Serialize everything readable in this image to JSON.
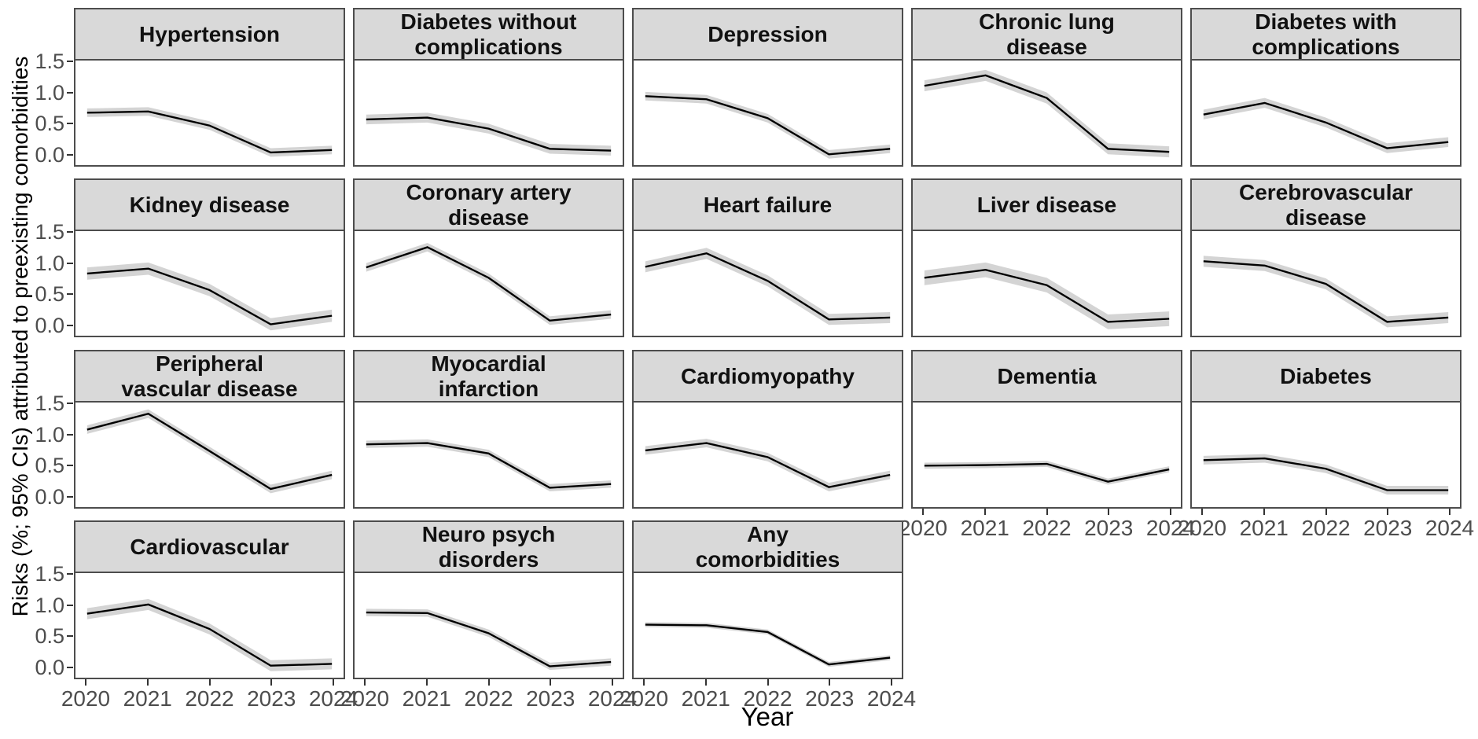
{
  "chart_data": {
    "type": "line",
    "title": "",
    "xlabel": "Year",
    "ylabel": "Risks (%; 95% CIs) attributed to preexisting comorbidities",
    "x": [
      2020,
      2021,
      2022,
      2023,
      2024
    ],
    "x_tick_labels": [
      "2020",
      "2021",
      "2022",
      "2023",
      "2024"
    ],
    "y_ticks": [
      1.5,
      1.0,
      0.5,
      0.0
    ],
    "y_tick_labels": [
      "1.5",
      "1.0",
      "0.5",
      "0.0"
    ],
    "ylim": [
      -0.2,
      1.5
    ],
    "grid": "off",
    "legend": "none",
    "facet_columns": 5,
    "facets": [
      {
        "title": "Hypertension",
        "values": [
          0.66,
          0.68,
          0.45,
          0.01,
          0.05
        ],
        "ci": 0.07
      },
      {
        "title": "Diabetes without\ncomplications",
        "values": [
          0.55,
          0.58,
          0.4,
          0.07,
          0.04
        ],
        "ci": 0.08
      },
      {
        "title": "Depression",
        "values": [
          0.93,
          0.88,
          0.57,
          -0.02,
          0.07
        ],
        "ci": 0.07
      },
      {
        "title": "Chronic lung\ndisease",
        "values": [
          1.1,
          1.27,
          0.9,
          0.07,
          0.02
        ],
        "ci": 0.09
      },
      {
        "title": "Diabetes with\ncomplications",
        "values": [
          0.63,
          0.82,
          0.5,
          0.08,
          0.18
        ],
        "ci": 0.08
      },
      {
        "title": "Kidney disease",
        "values": [
          0.82,
          0.9,
          0.55,
          -0.01,
          0.13
        ],
        "ci": 0.1
      },
      {
        "title": "Coronary artery\ndisease",
        "values": [
          0.92,
          1.25,
          0.75,
          0.05,
          0.15
        ],
        "ci": 0.07
      },
      {
        "title": "Heart failure",
        "values": [
          0.93,
          1.15,
          0.7,
          0.07,
          0.1
        ],
        "ci": 0.09
      },
      {
        "title": "Liver disease",
        "values": [
          0.75,
          0.88,
          0.63,
          0.03,
          0.08
        ],
        "ci": 0.12
      },
      {
        "title": "Cerebrovascular\ndisease",
        "values": [
          1.02,
          0.95,
          0.65,
          0.03,
          0.1
        ],
        "ci": 0.09
      },
      {
        "title": "Peripheral\nvascular disease",
        "values": [
          1.07,
          1.33,
          0.72,
          0.1,
          0.33
        ],
        "ci": 0.07
      },
      {
        "title": "Myocardial\ninfarction",
        "values": [
          0.83,
          0.85,
          0.68,
          0.12,
          0.18
        ],
        "ci": 0.06
      },
      {
        "title": "Cardiomyopathy",
        "values": [
          0.73,
          0.85,
          0.62,
          0.13,
          0.33
        ],
        "ci": 0.07
      },
      {
        "title": "Dementia",
        "values": [
          0.48,
          0.49,
          0.51,
          0.22,
          0.42
        ],
        "ci": 0.05
      },
      {
        "title": "Diabetes",
        "values": [
          0.57,
          0.6,
          0.43,
          0.08,
          0.08
        ],
        "ci": 0.07
      },
      {
        "title": "Cardiovascular",
        "values": [
          0.85,
          1.0,
          0.6,
          0.0,
          0.03
        ],
        "ci": 0.09
      },
      {
        "title": "Neuro psych\ndisorders",
        "values": [
          0.87,
          0.86,
          0.53,
          -0.01,
          0.06
        ],
        "ci": 0.06
      },
      {
        "title": "Any\ncomorbidities",
        "values": [
          0.67,
          0.66,
          0.55,
          0.02,
          0.13
        ],
        "ci": 0.04
      }
    ]
  },
  "colors": {
    "strip_background": "#d9d9d9",
    "panel_border": "#4d4d4d",
    "line": "#000000",
    "ci_ribbon": "#d4d4d4",
    "tick_label": "#4d4d4d",
    "axis_title": "#000000",
    "background": "#ffffff"
  }
}
